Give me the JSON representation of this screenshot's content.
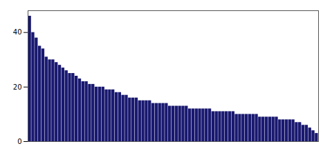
{
  "chart_data": {
    "type": "bar",
    "values": [
      46,
      40,
      38,
      35,
      34,
      31,
      30,
      30,
      29,
      28,
      27,
      26,
      25,
      25,
      24,
      23,
      22,
      22,
      21,
      21,
      20,
      20,
      20,
      19,
      19,
      19,
      18,
      18,
      17,
      17,
      16,
      16,
      16,
      15,
      15,
      15,
      15,
      14,
      14,
      14,
      14,
      14,
      13,
      13,
      13,
      13,
      13,
      13,
      12,
      12,
      12,
      12,
      12,
      12,
      12,
      11,
      11,
      11,
      11,
      11,
      11,
      11,
      10,
      10,
      10,
      10,
      10,
      10,
      10,
      9,
      9,
      9,
      9,
      9,
      9,
      8,
      8,
      8,
      8,
      8,
      7,
      7,
      6,
      6,
      5,
      4,
      3
    ],
    "color": "#191970",
    "ylim": [
      0,
      48
    ],
    "yticks": [
      0,
      20,
      40
    ],
    "grid": false,
    "tick_labels": "y"
  }
}
